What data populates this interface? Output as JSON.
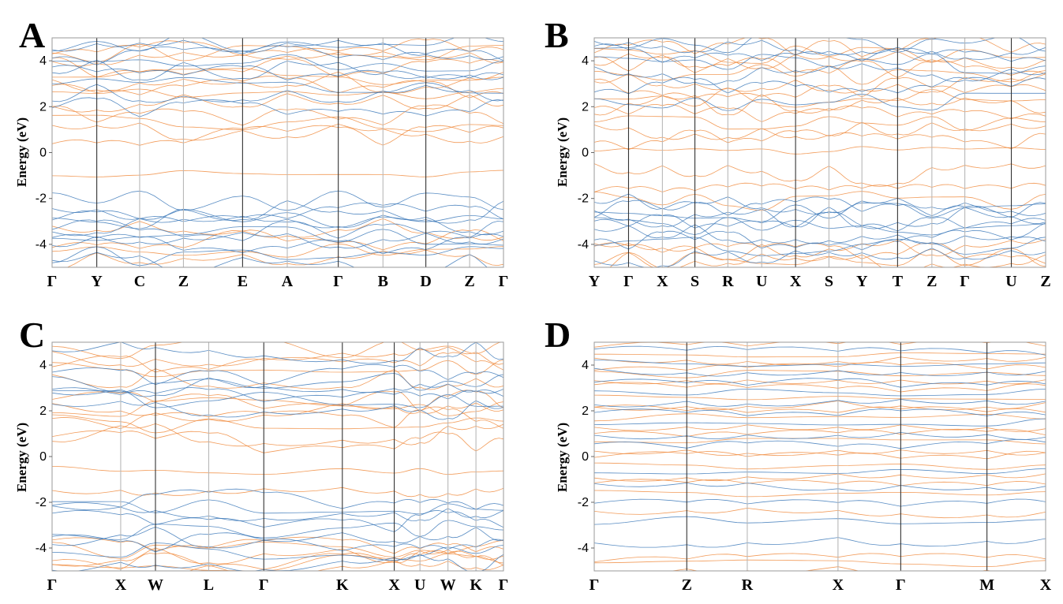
{
  "colors": {
    "spin_up": "#f08a3c",
    "spin_down": "#3b78b8",
    "dark_line": "#333333",
    "light_line": "#b8b8b8"
  },
  "chart_data": [
    {
      "type": "line",
      "panel": "A",
      "ylabel": "Energy (eV)",
      "ylim": [
        -5,
        5
      ],
      "yticks": [
        -4,
        -2,
        0,
        2,
        4
      ],
      "kpath": [
        "Γ",
        "Y",
        "C",
        "Z",
        "E",
        "A",
        "Γ",
        "B",
        "D",
        "Z",
        "Γ"
      ],
      "kpos": [
        0,
        0.099,
        0.194,
        0.291,
        0.422,
        0.521,
        0.634,
        0.733,
        0.828,
        0.925,
        1
      ],
      "kdark": [
        1,
        4,
        6,
        8
      ],
      "gap": [
        -0.9,
        0.6
      ],
      "series": [
        {
          "name": "orange",
          "color": "#f08a3c",
          "energies": [
            -4.6,
            -4.2,
            -3.8,
            -3.3,
            -0.9,
            0.7,
            0.9,
            1.3,
            1.6,
            2.2,
            2.5,
            2.8,
            3.1,
            3.4,
            3.7,
            4.0,
            4.3,
            4.6
          ]
        },
        {
          "name": "blue",
          "color": "#3b78b8",
          "energies": [
            -4.8,
            -4.5,
            -4.1,
            -3.9,
            -3.6,
            -3.4,
            -3.1,
            -2.9,
            -2.7,
            -2.5,
            -2.1,
            2.0,
            2.6,
            2.9,
            3.3,
            3.6,
            3.9,
            4.2,
            4.5,
            4.8
          ]
        }
      ]
    },
    {
      "type": "line",
      "panel": "B",
      "ylabel": "Energy (eV)",
      "ylim": [
        -5,
        5
      ],
      "yticks": [
        -4,
        -2,
        0,
        2,
        4
      ],
      "kpath": [
        "Y",
        "Γ",
        "X",
        "S",
        "R",
        "U",
        "X",
        "S",
        "Y",
        "T",
        "Z",
        "Γ",
        "U",
        "Z"
      ],
      "kpos": [
        0,
        0.076,
        0.151,
        0.223,
        0.296,
        0.371,
        0.446,
        0.52,
        0.593,
        0.672,
        0.748,
        0.821,
        0.924,
        1
      ],
      "kdark": [
        1,
        3,
        6,
        9,
        12
      ],
      "gap": [
        -1.6,
        0.1
      ],
      "series": [
        {
          "name": "orange",
          "color": "#f08a3c",
          "energies": [
            -4.8,
            -4.6,
            -4.4,
            -4.2,
            -2.1,
            -1.6,
            -0.9,
            0.1,
            0.5,
            0.9,
            1.3,
            1.7,
            2.1,
            2.4,
            2.8,
            3.1,
            3.4,
            3.7,
            4.0,
            4.3,
            4.6
          ]
        },
        {
          "name": "blue",
          "color": "#3b78b8",
          "energies": [
            -4.5,
            -4.1,
            -3.8,
            -3.5,
            -3.2,
            -3.0,
            -2.8,
            -2.6,
            -2.4,
            -2.2,
            2.2,
            3.0,
            3.5,
            3.9,
            4.2,
            4.5,
            4.8
          ]
        }
      ]
    },
    {
      "type": "line",
      "panel": "C",
      "ylabel": "Energy (eV)",
      "ylim": [
        -5,
        5
      ],
      "yticks": [
        -4,
        -2,
        0,
        2,
        4
      ],
      "kpath": [
        "Γ",
        "X",
        "W",
        "L",
        "Γ",
        "K",
        "X",
        "U",
        "W",
        "K",
        "Γ"
      ],
      "kpos": [
        0,
        0.152,
        0.229,
        0.347,
        0.469,
        0.643,
        0.758,
        0.815,
        0.877,
        0.939,
        1
      ],
      "kdark": [
        2,
        4,
        5,
        6
      ],
      "gap": [
        -1.5,
        -0.6
      ],
      "series": [
        {
          "name": "orange",
          "color": "#f08a3c",
          "energies": [
            -4.9,
            -4.7,
            -4.5,
            -4.3,
            -4.1,
            -3.9,
            -1.5,
            -0.6,
            0.6,
            1.0,
            1.4,
            1.6,
            1.9,
            2.2,
            2.4,
            3.4,
            3.8,
            4.1,
            4.4,
            4.7
          ]
        },
        {
          "name": "blue",
          "color": "#3b78b8",
          "energies": [
            -4.6,
            -4.2,
            -3.8,
            -3.5,
            -3.2,
            -2.9,
            -2.6,
            -2.3,
            -1.9,
            2.0,
            2.5,
            2.7,
            3.0,
            3.2,
            3.5,
            4.6
          ]
        }
      ]
    },
    {
      "type": "line",
      "panel": "D",
      "ylabel": "Energy (eV)",
      "ylim": [
        -5,
        5
      ],
      "yticks": [
        -4,
        -2,
        0,
        2,
        4
      ],
      "kpath": [
        "Γ",
        "Z",
        "R",
        "X",
        "Γ",
        "M",
        "X"
      ],
      "kpos": [
        0,
        0.205,
        0.339,
        0.54,
        0.679,
        0.87,
        1
      ],
      "kdark": [
        1,
        4,
        5
      ],
      "gap": [
        -1.2,
        -1.2
      ],
      "series": [
        {
          "name": "orange",
          "color": "#f08a3c",
          "energies": [
            -4.9,
            -4.7,
            -4.5,
            -2.4,
            -1.6,
            -1.2,
            -0.8,
            -0.4,
            0.0,
            0.3,
            0.7,
            1.0,
            1.3,
            1.7,
            2.0,
            2.3,
            2.6,
            3.0,
            3.3,
            3.6,
            3.9,
            4.2,
            4.5,
            4.8
          ]
        },
        {
          "name": "blue",
          "color": "#3b78b8",
          "energies": [
            -3.7,
            -2.8,
            -2.0,
            -1.3,
            -0.6,
            0.5,
            0.9,
            1.5,
            1.9,
            2.4,
            2.8,
            3.2,
            3.7,
            4.1,
            4.6
          ]
        }
      ]
    }
  ]
}
